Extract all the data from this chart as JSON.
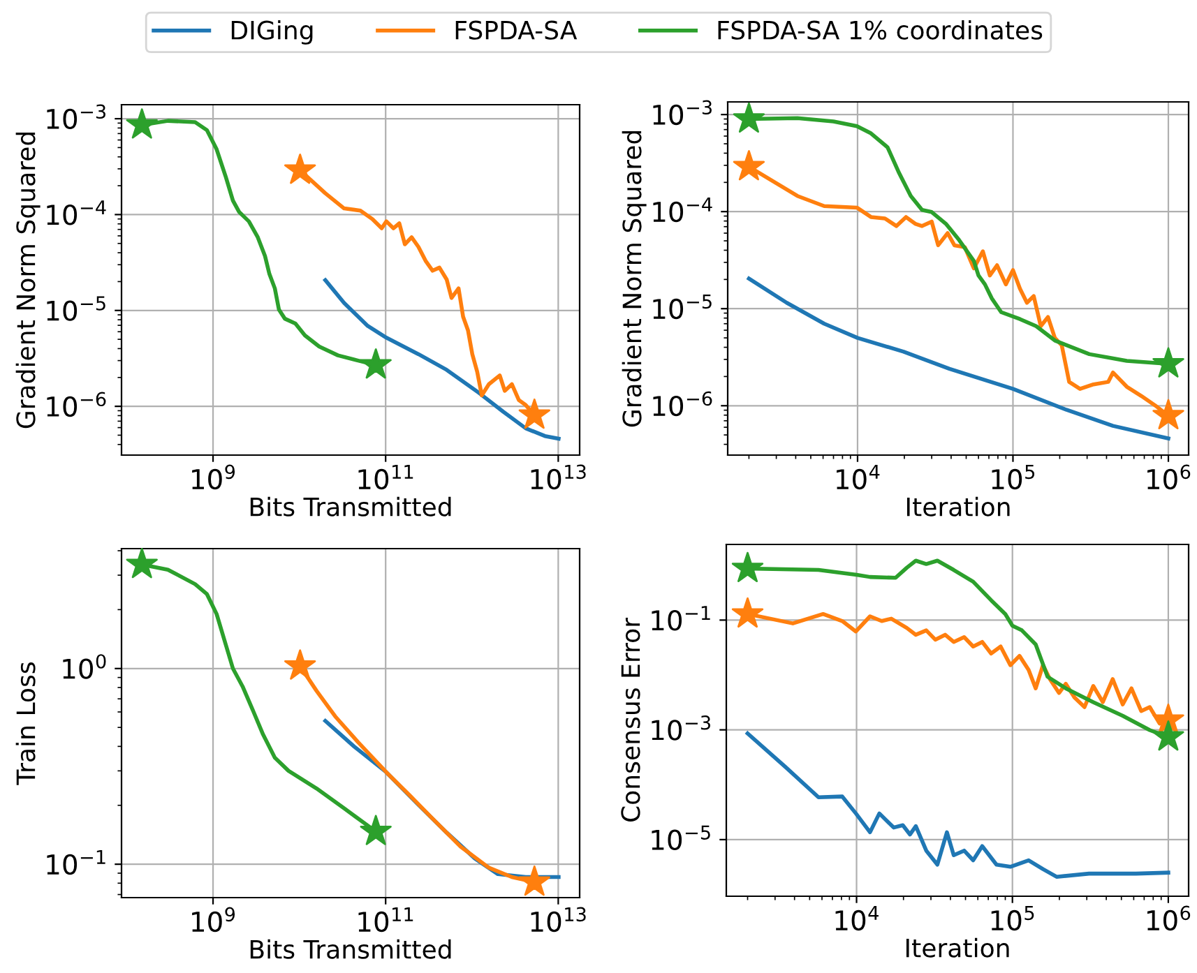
{
  "chart_data": [
    {
      "type": "line",
      "xlabel": "Bits Transmitted",
      "ylabel": "Gradient Norm Squared",
      "log": "xy",
      "grid": true,
      "legend": "top",
      "xlim": [
        87000000.0,
        17700000000000.0
      ],
      "ylim": [
        3.1e-07,
        0.0014
      ],
      "xticks": [
        {
          "value": 1000000000.0,
          "label": "10$^{9}$"
        },
        {
          "value": 100000000000.0,
          "label": "10$^{11}$"
        },
        {
          "value": 10000000000000.0,
          "label": "10$^{13}$"
        }
      ],
      "yticks": [
        {
          "value": 1e-06,
          "label": "10$^{−6}$"
        },
        {
          "value": 1e-05,
          "label": "10$^{−5}$"
        },
        {
          "value": 0.0001,
          "label": "10$^{−4}$"
        },
        {
          "value": 0.001,
          "label": "10$^{−3}$"
        }
      ],
      "series": [
        {
          "name": "DIGing",
          "color": "#1f77b4",
          "x": [
            20000000000.0,
            33000000000.0,
            62000000000.0,
            102000000000.0,
            240000000000.0,
            510000000000.0,
            1220000000000.0,
            2300000000000.0,
            4200000000000.0,
            7000000000000.0,
            10100000000000.0
          ],
          "values": [
            2.07e-05,
            1.2e-05,
            6.9e-06,
            5.2e-06,
            3.5e-06,
            2.4e-06,
            1.37e-06,
            8.8e-07,
            5.9e-07,
            4.9e-07,
            4.6e-07
          ]
        },
        {
          "name": "FSPDA-SA",
          "color": "#ff7f0e",
          "x": [
            10200000000.0,
            20000000000.0,
            33000000000.0,
            51000000000.0,
            70000000000.0,
            90000000000.0,
            102000000000.0,
            123000000000.0,
            144000000000.0,
            167000000000.0,
            200000000000.0,
            240000000000.0,
            290000000000.0,
            350000000000.0,
            420000000000.0,
            510000000000.0,
            580000000000.0,
            700000000000.0,
            790000000000.0,
            900000000000.0,
            1010000000000.0,
            1150000000000.0,
            1300000000000.0,
            1570000000000.0,
            2100000000000.0,
            2400000000000.0,
            2900000000000.0,
            3500000000000.0,
            4200000000000.0,
            5300000000000.0
          ],
          "values": [
            0.00029,
            0.000167,
            0.000116,
            0.00011,
            9e-05,
            7.2e-05,
            8.5e-05,
            7.2e-05,
            8.1e-05,
            4.9e-05,
            5.8e-05,
            4.6e-05,
            3.3e-05,
            2.6e-05,
            2.8e-05,
            2.1e-05,
            1.35e-05,
            1.7e-05,
            8.6e-06,
            6.2e-06,
            3.5e-06,
            2.3e-06,
            1.3e-06,
            1.7e-06,
            2.1e-06,
            1.45e-06,
            1.7e-06,
            1.16e-06,
            1.03e-06,
            8.1e-07
          ]
        },
        {
          "name": "FSPDA-SA 1% coordinates",
          "color": "#2ca02c",
          "x": [
            150000000.0,
            300000000.0,
            620000000.0,
            850000000.0,
            1100000000.0,
            1400000000.0,
            1700000000.0,
            2000000000.0,
            2600000000.0,
            3300000000.0,
            4000000000.0,
            4500000000.0,
            5200000000.0,
            5800000000.0,
            6800000000.0,
            9000000000.0,
            11600000000.0,
            17000000000.0,
            28000000000.0,
            48000000000.0,
            77000000000.0
          ],
          "values": [
            0.00086,
            0.00095,
            0.00092,
            0.00076,
            0.00048,
            0.00025,
            0.00014,
            0.000107,
            8.5e-05,
            5.8e-05,
            3.7e-05,
            2.4e-05,
            1.7e-05,
            1.02e-05,
            8.2e-06,
            7.3e-06,
            5.5e-06,
            4.2e-06,
            3.4e-06,
            3e-06,
            2.7e-06
          ]
        },
        {
          "type": "scatter",
          "marker": "star",
          "color": "#ff7f0e",
          "x": [
            10200000000.0,
            5300000000000.0
          ],
          "values": [
            0.00029,
            8.1e-07
          ]
        },
        {
          "type": "scatter",
          "marker": "star",
          "color": "#2ca02c",
          "x": [
            150000000.0,
            77000000000.0
          ],
          "values": [
            0.00086,
            2.7e-06
          ]
        }
      ]
    },
    {
      "type": "line",
      "xlabel": "Iteration",
      "ylabel": "Gradient Norm Squared",
      "log": "xy",
      "grid": true,
      "xlim": [
        1460.0,
        1350000.0
      ],
      "ylim": [
        3.1e-07,
        0.00135
      ],
      "xticks": [
        {
          "value": 10000.0,
          "label": "10$^{4}$"
        },
        {
          "value": 100000.0,
          "label": "10$^{5}$"
        },
        {
          "value": 1000000.0,
          "label": "10$^{6}$"
        }
      ],
      "yticks": [
        {
          "value": 1e-06,
          "label": "10$^{−6}$"
        },
        {
          "value": 1e-05,
          "label": "10$^{−5}$"
        },
        {
          "value": 0.0001,
          "label": "10$^{−4}$"
        },
        {
          "value": 0.001,
          "label": "10$^{−3}$"
        }
      ],
      "series": [
        {
          "color": "#1f77b4",
          "x": [
            2000.0,
            3500.0,
            6100.0,
            10000.0,
            19800.0,
            39000.0,
            100000.0,
            220000.0,
            440000.0,
            1000000.0
          ],
          "values": [
            2.04e-05,
            1.15e-05,
            7e-06,
            5e-06,
            3.6e-06,
            2.4e-06,
            1.49e-06,
            9.1e-07,
            6.2e-07,
            4.6e-07
          ]
        },
        {
          "color": "#ff7f0e",
          "x": [
            2000.0,
            4100.0,
            6100.0,
            9900.0,
            12200.0,
            15000.0,
            17800.0,
            20500.0,
            23500.0,
            26000.0,
            30000.0,
            33000.0,
            38000.0,
            42000.0,
            49000.0,
            56000.0,
            64000.0,
            71000.0,
            79000.0,
            90000.0,
            100000.0,
            111000.0,
            123000.0,
            136000.0,
            151000.0,
            168000.0,
            186000.0,
            206000.0,
            230000.0,
            270000.0,
            330000.0,
            410000.0,
            440000.0,
            540000.0,
            670000.0,
            820000.0,
            1000000.0
          ],
          "values": [
            0.00029,
            0.000145,
            0.000114,
            0.00011,
            8.8e-05,
            8.5e-05,
            7.1e-05,
            8.8e-05,
            7.5e-05,
            7.1e-05,
            7.9e-05,
            4.5e-05,
            6e-05,
            4.5e-05,
            4.3e-05,
            2.6e-05,
            3.9e-05,
            2.2e-05,
            2.8e-05,
            1.78e-05,
            2.5e-05,
            1.6e-05,
            1.15e-05,
            1.35e-05,
            6.6e-06,
            8.2e-06,
            5e-06,
            4.2e-06,
            1.76e-06,
            1.49e-06,
            1.66e-06,
            1.76e-06,
            2.2e-06,
            1.57e-06,
            1.26e-06,
            1.01e-06,
            7.9e-07
          ]
        },
        {
          "color": "#2ca02c",
          "x": [
            2000.0,
            4100.0,
            7000.0,
            9900.0,
            12200.0,
            15600.0,
            18500.0,
            22000.0,
            26000.0,
            30000.0,
            37000.0,
            45000.0,
            56000.0,
            60000.0,
            66000.0,
            73000.0,
            84000.0,
            111000.0,
            141000.0,
            186000.0,
            310000.0,
            540000.0,
            1000000.0
          ],
          "values": [
            0.0009,
            0.00092,
            0.00085,
            0.00076,
            0.00064,
            0.00046,
            0.00025,
            0.000145,
            0.000104,
            9.9e-05,
            7.5e-05,
            5.1e-05,
            3.1e-05,
            2.2e-05,
            1.78e-05,
            1.28e-05,
            9.2e-06,
            7.8e-06,
            6.6e-06,
            4.7e-06,
            3.4e-06,
            2.9e-06,
            2.7e-06
          ]
        },
        {
          "type": "scatter",
          "marker": "star",
          "color": "#ff7f0e",
          "x": [
            2000.0,
            1000000.0
          ],
          "values": [
            0.00029,
            7.9e-07
          ]
        },
        {
          "type": "scatter",
          "marker": "star",
          "color": "#2ca02c",
          "x": [
            2000.0,
            1000000.0
          ],
          "values": [
            0.0009,
            2.7e-06
          ]
        }
      ]
    },
    {
      "type": "line",
      "xlabel": "Bits Transmitted",
      "ylabel": "Train Loss",
      "log": "xy",
      "grid": true,
      "xlim": [
        87000000.0,
        17700000000000.0
      ],
      "ylim": [
        0.0675,
        4.1
      ],
      "xticks": [
        {
          "value": 1000000000.0,
          "label": "10$^{9}$"
        },
        {
          "value": 100000000000.0,
          "label": "10$^{11}$"
        },
        {
          "value": 10000000000000.0,
          "label": "10$^{13}$"
        }
      ],
      "yticks": [
        {
          "value": 0.1,
          "label": "10$^{−1}$"
        },
        {
          "value": 1,
          "label": "10$^{0}$"
        }
      ],
      "series": [
        {
          "color": "#1f77b4",
          "x": [
            20000000000.0,
            43000000000.0,
            102000000000.0,
            240000000000.0,
            510000000000.0,
            1080000000000.0,
            2000000000000.0,
            4200000000000.0,
            10100000000000.0
          ],
          "values": [
            0.54,
            0.4,
            0.295,
            0.201,
            0.145,
            0.107,
            0.089,
            0.086,
            0.086
          ]
        },
        {
          "color": "#ff7f0e",
          "x": [
            10200000000.0,
            15800000000.0,
            26000000000.0,
            48000000000.0,
            102000000000.0,
            190000000000.0,
            350000000000.0,
            740000000000.0,
            1570000000000.0,
            2900000000000.0,
            5300000000000.0
          ],
          "values": [
            1.03,
            0.77,
            0.57,
            0.42,
            0.295,
            0.225,
            0.171,
            0.123,
            0.096,
            0.086,
            0.081
          ]
        },
        {
          "color": "#2ca02c",
          "x": [
            150000000.0,
            300000000.0,
            620000000.0,
            850000000.0,
            1100000000.0,
            1400000000.0,
            1700000000.0,
            2200000000.0,
            2950000000.0,
            3800000000.0,
            5200000000.0,
            7500000000.0,
            15800000000.0,
            33000000000.0,
            77000000000.0
          ],
          "values": [
            3.4,
            3.2,
            2.7,
            2.4,
            1.9,
            1.33,
            1.0,
            0.81,
            0.6,
            0.46,
            0.35,
            0.3,
            0.244,
            0.193,
            0.147
          ]
        },
        {
          "type": "scatter",
          "marker": "star",
          "color": "#ff7f0e",
          "x": [
            10200000000.0,
            5300000000000.0
          ],
          "values": [
            1.03,
            0.081
          ]
        },
        {
          "type": "scatter",
          "marker": "star",
          "color": "#2ca02c",
          "x": [
            150000000.0,
            77000000000.0
          ],
          "values": [
            3.4,
            0.147
          ]
        }
      ]
    },
    {
      "type": "line",
      "xlabel": "Iteration",
      "ylabel": "Consensus Error",
      "log": "xy",
      "grid": true,
      "xlim": [
        1460.0,
        1350000.0
      ],
      "ylim": [
        9.3e-07,
        2.39
      ],
      "xticks": [
        {
          "value": 10000.0,
          "label": "10$^{4}$"
        },
        {
          "value": 100000.0,
          "label": "10$^{5}$"
        },
        {
          "value": 1000000.0,
          "label": "10$^{6}$"
        }
      ],
      "yticks": [
        {
          "value": 1e-05,
          "label": "10$^{−5}$"
        },
        {
          "value": 0.001,
          "label": "10$^{−3}$"
        },
        {
          "value": 0.1,
          "label": "10$^{−1}$"
        }
      ],
      "series": [
        {
          "color": "#1f77b4",
          "x": [
            2000.0,
            3500.0,
            5700.0,
            8100.0,
            9900.0,
            12200.0,
            14000.0,
            17300.0,
            19800.0,
            22000.0,
            24000.0,
            28000.0,
            33000.0,
            38000.0,
            42000.0,
            49000.0,
            56000.0,
            64000.0,
            79000.0,
            97000.0,
            127000.0,
            157000.0,
            192000.0,
            310000.0,
            440000.0,
            620000.0,
            1000000.0
          ],
          "values": [
            0.00086,
            0.00021,
            5.9e-05,
            6.1e-05,
            3e-05,
            1.36e-05,
            3e-05,
            1.66e-05,
            1.83e-05,
            1.24e-05,
            1.76e-05,
            6.3e-06,
            3.5e-06,
            1.36e-05,
            5.2e-06,
            6.3e-06,
            4.2e-06,
            7.6e-06,
            3.5e-06,
            3.2e-06,
            4.2e-06,
            2.9e-06,
            2.1e-06,
            2.4e-06,
            2.4e-06,
            2.4e-06,
            2.5e-06
          ]
        },
        {
          "color": "#ff7f0e",
          "x": [
            2000.0,
            3900.0,
            6100.0,
            8100.0,
            9900.0,
            12200.0,
            14500.0,
            16700.0,
            21000.0,
            24000.0,
            28000.0,
            32000.0,
            37000.0,
            42000.0,
            49000.0,
            56000.0,
            64000.0,
            73000.0,
            84000.0,
            97000.0,
            111000.0,
            127000.0,
            141000.0,
            157000.0,
            174000.0,
            199000.0,
            220000.0,
            250000.0,
            290000.0,
            330000.0,
            380000.0,
            440000.0,
            510000.0,
            580000.0,
            670000.0,
            760000.0,
            880000.0,
            1000000.0
          ],
          "values": [
            0.129,
            0.087,
            0.129,
            0.096,
            0.062,
            0.117,
            0.096,
            0.106,
            0.072,
            0.054,
            0.065,
            0.044,
            0.054,
            0.04,
            0.049,
            0.033,
            0.04,
            0.0246,
            0.033,
            0.0151,
            0.0223,
            0.0124,
            0.0057,
            0.0151,
            0.0084,
            0.0047,
            0.0069,
            0.0039,
            0.0026,
            0.0063,
            0.0032,
            0.0084,
            0.0029,
            0.0057,
            0.0022,
            0.0026,
            0.0013,
            0.0015
          ]
        },
        {
          "color": "#2ca02c",
          "x": [
            2000.0,
            5700.0,
            10000.0,
            12200.0,
            17800.0,
            21000.0,
            24000.0,
            28000.0,
            33000.0,
            42000.0,
            56000.0,
            73000.0,
            90000.0,
            100000.0,
            115000.0,
            141000.0,
            168000.0,
            220000.0,
            330000.0,
            510000.0,
            760000.0,
            1000000.0
          ],
          "values": [
            0.87,
            0.82,
            0.67,
            0.61,
            0.59,
            0.9,
            1.21,
            1.05,
            1.21,
            0.82,
            0.5,
            0.23,
            0.129,
            0.079,
            0.065,
            0.036,
            0.0093,
            0.0057,
            0.0032,
            0.0018,
            0.00099,
            0.00074
          ]
        },
        {
          "type": "scatter",
          "marker": "star",
          "color": "#ff7f0e",
          "x": [
            2000.0,
            1000000.0
          ],
          "values": [
            0.129,
            0.0015
          ]
        },
        {
          "type": "scatter",
          "marker": "star",
          "color": "#2ca02c",
          "x": [
            2000.0,
            1000000.0
          ],
          "values": [
            0.87,
            0.00074
          ]
        }
      ]
    }
  ]
}
